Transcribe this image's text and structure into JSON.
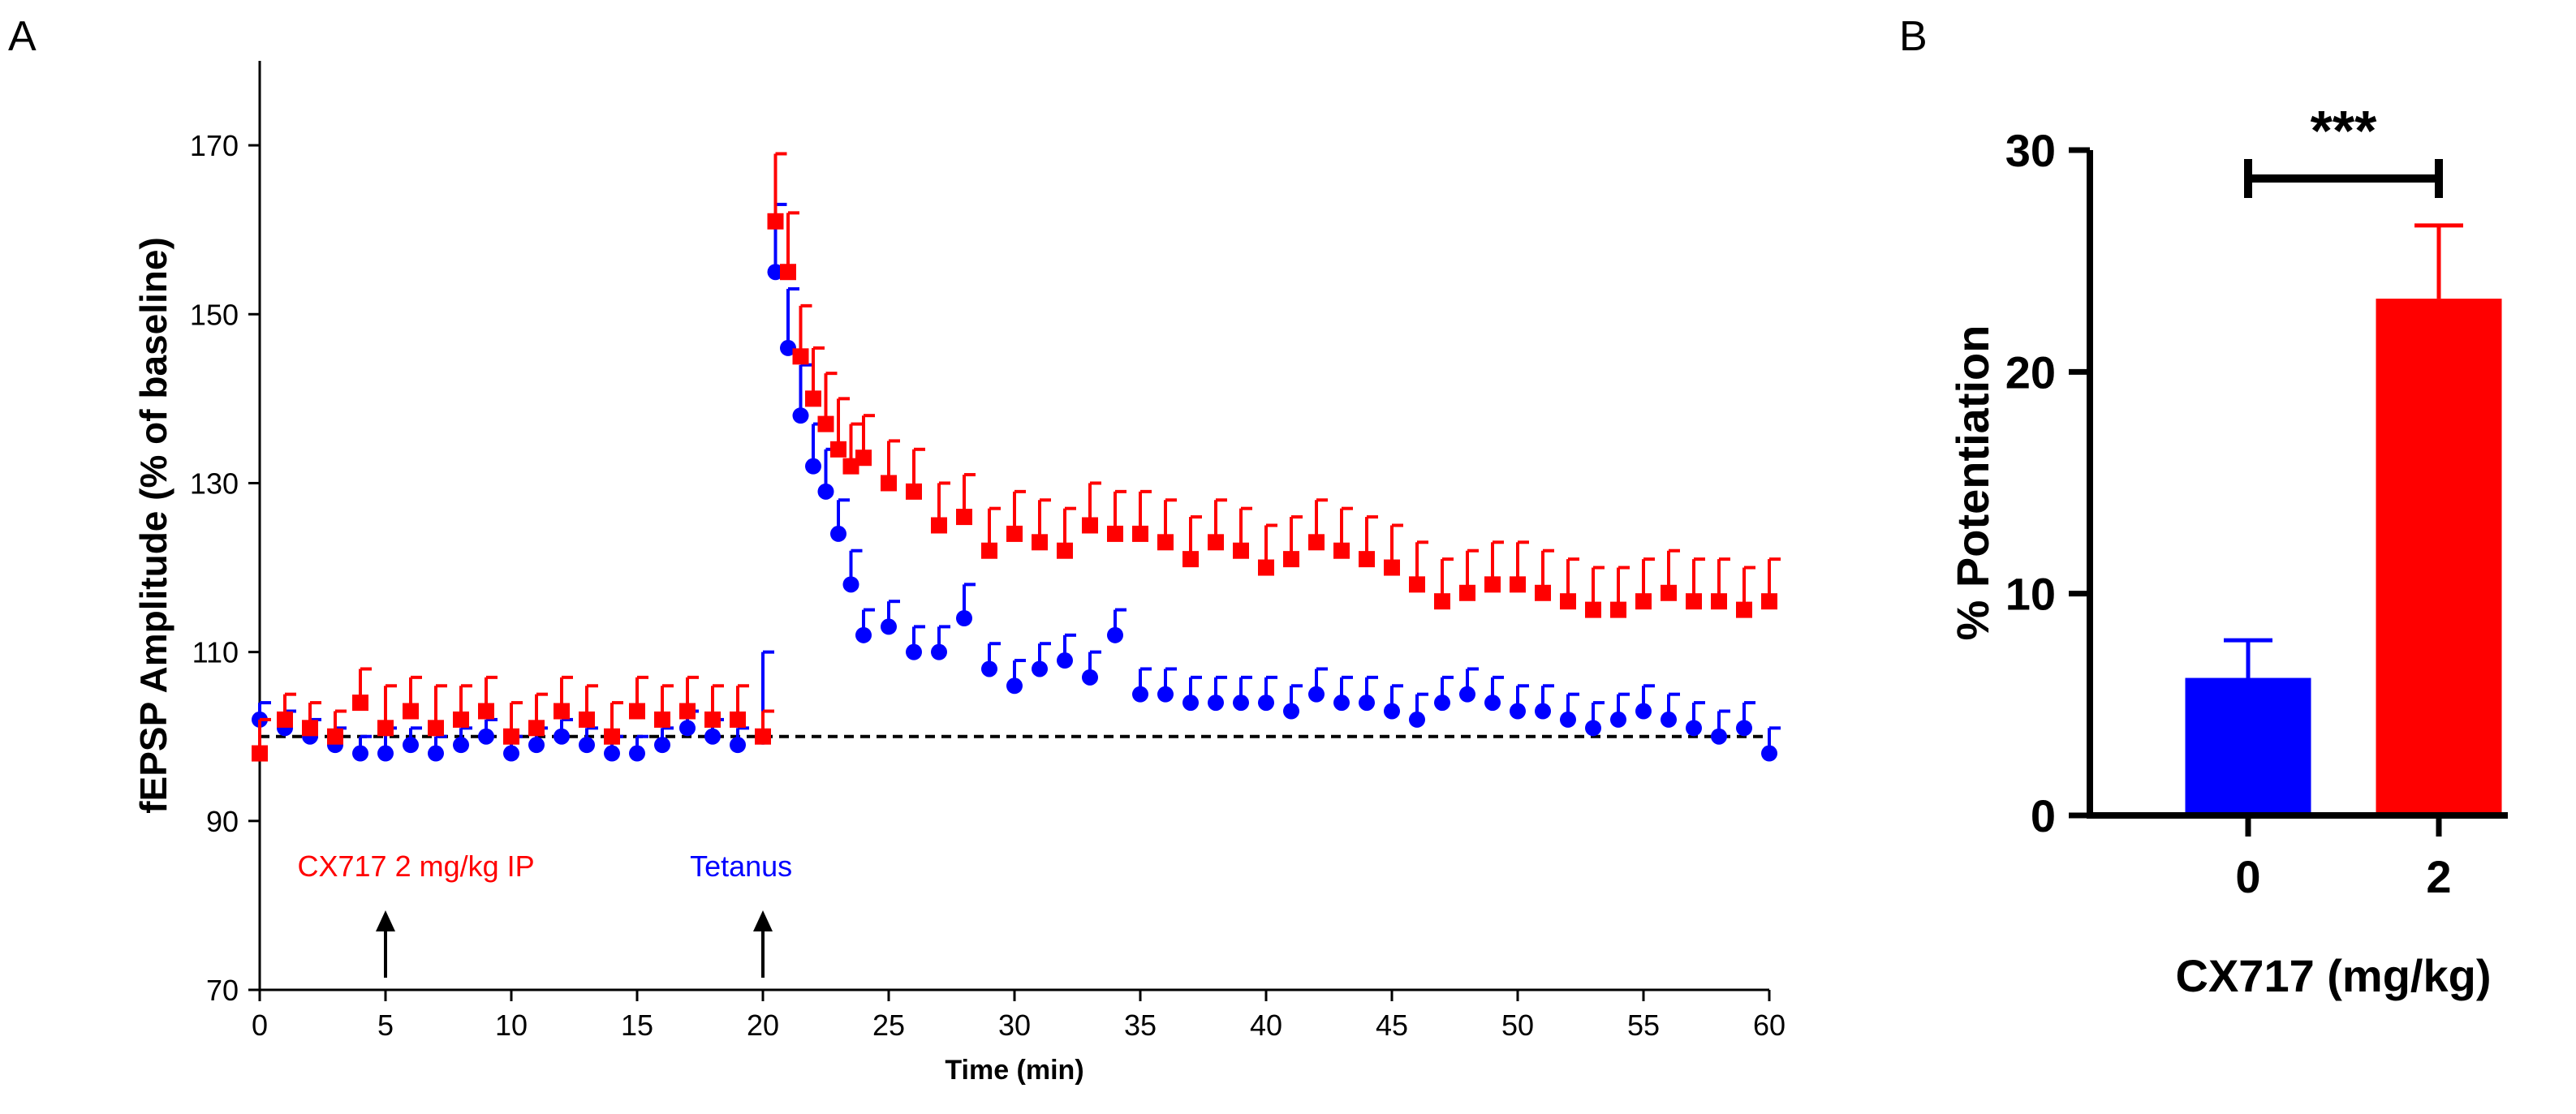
{
  "panels": {
    "a_label": "A",
    "b_label": "B"
  },
  "colors": {
    "control": "#0000ff",
    "drug": "#ff0000",
    "axis": "#000000"
  },
  "chart_data": [
    {
      "id": "A",
      "type": "scatter",
      "title": "",
      "xlabel": "Time (min)",
      "ylabel": "fEPSP Amplitude (% of baseline)",
      "xlim": [
        0,
        60
      ],
      "ylim": [
        70,
        180
      ],
      "xticks": [
        0,
        5,
        10,
        15,
        20,
        25,
        30,
        35,
        40,
        45,
        50,
        55,
        60
      ],
      "yticks": [
        70,
        90,
        110,
        130,
        150,
        170
      ],
      "baseline": 100,
      "annotations": [
        {
          "text": "CX717 2 mg/kg IP",
          "color": "#ff0000",
          "arrow_x": 5
        },
        {
          "text": "Tetanus",
          "color": "#0000ff",
          "arrow_x": 20
        }
      ],
      "series": [
        {
          "name": "0 mg/kg",
          "color": "#0000ff",
          "marker": "circle",
          "x": [
            0,
            1,
            2,
            3,
            4,
            5,
            6,
            7,
            8,
            9,
            10,
            11,
            12,
            13,
            14,
            15,
            16,
            17,
            18,
            19,
            20,
            20.5,
            21,
            21.5,
            22,
            22.5,
            23,
            23.5,
            24,
            25,
            26,
            27,
            28,
            29,
            30,
            31,
            32,
            33,
            34,
            35,
            36,
            37,
            38,
            39,
            40,
            41,
            42,
            43,
            44,
            45,
            46,
            47,
            48,
            49,
            50,
            51,
            52,
            53,
            54,
            55,
            56,
            57,
            58,
            59,
            60
          ],
          "y": [
            102,
            101,
            100,
            99,
            98,
            98,
            99,
            98,
            99,
            100,
            98,
            99,
            100,
            99,
            98,
            98,
            99,
            101,
            100,
            99,
            100,
            155,
            146,
            138,
            132,
            129,
            124,
            118,
            112,
            113,
            110,
            110,
            114,
            108,
            106,
            108,
            109,
            107,
            112,
            105,
            105,
            104,
            104,
            104,
            104,
            103,
            105,
            104,
            104,
            103,
            102,
            104,
            105,
            104,
            103,
            103,
            102,
            101,
            102,
            103,
            102,
            101,
            100,
            101,
            98
          ],
          "err": [
            2,
            2,
            2,
            2,
            2,
            3,
            2,
            2,
            2,
            2,
            2,
            2,
            2,
            2,
            2,
            2,
            2,
            2,
            2,
            2,
            10,
            8,
            7,
            6,
            5,
            5,
            4,
            4,
            3,
            3,
            3,
            3,
            4,
            3,
            3,
            3,
            3,
            3,
            3,
            3,
            3,
            3,
            3,
            3,
            3,
            3,
            3,
            3,
            3,
            3,
            3,
            3,
            3,
            3,
            3,
            3,
            3,
            3,
            3,
            3,
            3,
            3,
            3,
            3,
            3
          ]
        },
        {
          "name": "2 mg/kg",
          "color": "#ff0000",
          "marker": "square",
          "x": [
            0,
            1,
            2,
            3,
            4,
            5,
            6,
            7,
            8,
            9,
            10,
            11,
            12,
            13,
            14,
            15,
            16,
            17,
            18,
            19,
            20,
            20.5,
            21,
            21.5,
            22,
            22.5,
            23,
            23.5,
            24,
            25,
            26,
            27,
            28,
            29,
            30,
            31,
            32,
            33,
            34,
            35,
            36,
            37,
            38,
            39,
            40,
            41,
            42,
            43,
            44,
            45,
            46,
            47,
            48,
            49,
            50,
            51,
            52,
            53,
            54,
            55,
            56,
            57,
            58,
            59,
            60
          ],
          "y": [
            98,
            102,
            101,
            100,
            104,
            101,
            103,
            101,
            102,
            103,
            100,
            101,
            103,
            102,
            100,
            103,
            102,
            103,
            102,
            102,
            100,
            161,
            155,
            145,
            140,
            137,
            134,
            132,
            133,
            130,
            129,
            125,
            126,
            122,
            124,
            123,
            122,
            125,
            124,
            124,
            123,
            121,
            123,
            122,
            120,
            121,
            123,
            122,
            121,
            120,
            118,
            116,
            117,
            118,
            118,
            117,
            116,
            115,
            115,
            116,
            117,
            116,
            116,
            115,
            116
          ],
          "err": [
            4,
            3,
            3,
            3,
            4,
            5,
            4,
            5,
            4,
            4,
            4,
            4,
            4,
            4,
            4,
            4,
            4,
            4,
            4,
            4,
            3,
            8,
            7,
            6,
            6,
            6,
            6,
            5,
            5,
            5,
            5,
            5,
            5,
            5,
            5,
            5,
            5,
            5,
            5,
            5,
            5,
            5,
            5,
            5,
            5,
            5,
            5,
            5,
            5,
            5,
            5,
            5,
            5,
            5,
            5,
            5,
            5,
            5,
            5,
            5,
            5,
            5,
            5,
            5,
            5
          ]
        }
      ]
    },
    {
      "id": "B",
      "type": "bar",
      "title": "",
      "xlabel": "CX717 (mg/kg)",
      "ylabel": "% Potentiation",
      "categories": [
        "0",
        "2"
      ],
      "values": [
        6.2,
        23.3
      ],
      "errors": [
        1.7,
        3.3
      ],
      "bar_colors": [
        "#0000ff",
        "#ff0000"
      ],
      "ylim": [
        0,
        30
      ],
      "yticks": [
        0,
        10,
        20,
        30
      ],
      "significance": "***"
    }
  ]
}
